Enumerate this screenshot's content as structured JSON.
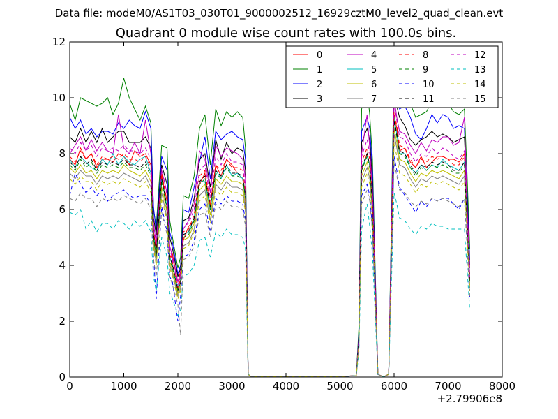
{
  "figure": {
    "suptitle": "Data file: modeM0/AS1T03_030T01_9000002512_16929cztM0_level2_quad_clean.evt",
    "x_offset_text": "+2.79906e8"
  },
  "chart_data": {
    "type": "line",
    "title": "Quadrant 0 module wise count rates with 100.0s bins.",
    "xlabel": "",
    "ylabel": "",
    "xlim": [
      0,
      8000
    ],
    "ylim": [
      0,
      12
    ],
    "x_ticks": [
      0,
      1000,
      2000,
      3000,
      4000,
      5000,
      6000,
      7000,
      8000
    ],
    "y_ticks": [
      0,
      2,
      4,
      6,
      8,
      10,
      12
    ],
    "x_offset": "+2.79906e8",
    "grid": false,
    "legend_position": "top-right",
    "legend_columns": 4,
    "x": [
      0,
      100,
      200,
      300,
      400,
      500,
      600,
      700,
      800,
      900,
      1000,
      1100,
      1200,
      1300,
      1400,
      1500,
      1550,
      1600,
      1700,
      1800,
      1850,
      1900,
      2000,
      2050,
      2100,
      2200,
      2300,
      2400,
      2500,
      2600,
      2700,
      2800,
      2900,
      3000,
      3100,
      3200,
      3250,
      3300,
      3350,
      4000,
      5000,
      5300,
      5350,
      5400,
      5500,
      5550,
      5600,
      5700,
      5800,
      5850,
      5900,
      6000,
      6050,
      6100,
      6200,
      6300,
      6400,
      6500,
      6600,
      6700,
      6800,
      6900,
      7000,
      7100,
      7200,
      7300,
      7350,
      7400
    ],
    "series": [
      {
        "name": "0",
        "color": "#ff0000",
        "dash": "solid",
        "values": [
          7.8,
          7.6,
          8.2,
          7.8,
          8.0,
          7.5,
          7.8,
          7.8,
          7.7,
          8.0,
          7.9,
          7.6,
          8.1,
          7.9,
          8.0,
          7.6,
          5.2,
          4.6,
          7.2,
          6.3,
          4.2,
          4.4,
          3.4,
          3.8,
          4.9,
          5.4,
          5.6,
          6.9,
          7.3,
          6.1,
          7.6,
          7.2,
          7.8,
          7.6,
          7.3,
          7.1,
          6.5,
          0.1,
          0.02,
          0.02,
          0.02,
          0.05,
          1.4,
          7.4,
          8.0,
          7.6,
          6.1,
          0.1,
          0.01,
          0.05,
          0.1,
          9.4,
          8.9,
          8.1,
          8.2,
          7.7,
          7.5,
          7.9,
          7.5,
          7.7,
          7.9,
          7.9,
          7.8,
          7.8,
          7.7,
          8.0,
          5.7,
          3.6
        ]
      },
      {
        "name": "1",
        "color": "#008000",
        "dash": "solid",
        "values": [
          9.8,
          9.2,
          10.0,
          9.9,
          9.8,
          9.7,
          9.8,
          10.0,
          9.4,
          9.8,
          10.7,
          10.0,
          9.6,
          9.2,
          9.7,
          9.1,
          6.0,
          5.4,
          8.3,
          8.2,
          5.6,
          5.0,
          3.9,
          4.3,
          6.5,
          6.4,
          7.2,
          8.9,
          9.4,
          7.6,
          9.6,
          9.0,
          9.5,
          9.3,
          9.5,
          9.3,
          8.2,
          0.1,
          0.02,
          0.02,
          0.02,
          0.05,
          1.8,
          9.6,
          10.3,
          9.4,
          7.8,
          0.1,
          0.01,
          0.05,
          0.1,
          11.2,
          10.7,
          10.2,
          10.3,
          9.8,
          9.3,
          9.4,
          9.5,
          9.9,
          9.7,
          9.8,
          9.8,
          9.5,
          9.4,
          9.6,
          7.3,
          4.6
        ]
      },
      {
        "name": "2",
        "color": "#0000ff",
        "dash": "solid",
        "values": [
          9.3,
          8.9,
          9.2,
          8.7,
          8.9,
          8.6,
          8.8,
          8.8,
          8.7,
          9.1,
          8.9,
          9.2,
          9.0,
          8.9,
          9.5,
          8.9,
          6.1,
          5.2,
          7.9,
          7.4,
          5.2,
          4.8,
          3.7,
          4.0,
          6.0,
          5.9,
          6.8,
          7.7,
          8.6,
          7.1,
          8.8,
          8.5,
          8.7,
          8.8,
          8.6,
          8.5,
          7.8,
          0.1,
          0.02,
          0.02,
          0.02,
          0.05,
          1.6,
          8.8,
          9.3,
          8.9,
          7.4,
          0.1,
          0.01,
          0.05,
          0.1,
          10.6,
          10.2,
          9.6,
          9.7,
          9.3,
          8.7,
          8.5,
          8.9,
          9.4,
          9.1,
          9.4,
          9.3,
          8.9,
          9.0,
          8.9,
          6.7,
          4.2
        ]
      },
      {
        "name": "3",
        "color": "#000000",
        "dash": "solid",
        "values": [
          8.6,
          8.4,
          8.9,
          8.4,
          8.8,
          8.4,
          8.9,
          8.4,
          8.6,
          8.8,
          8.8,
          8.4,
          8.4,
          8.4,
          8.6,
          8.2,
          5.7,
          5.1,
          7.6,
          6.9,
          5.0,
          4.6,
          3.6,
          3.9,
          5.6,
          5.7,
          6.4,
          7.8,
          8.0,
          6.8,
          8.5,
          7.8,
          8.4,
          8.0,
          8.2,
          8.1,
          7.4,
          0.1,
          0.02,
          0.02,
          0.02,
          0.05,
          1.5,
          8.4,
          8.9,
          8.5,
          7.0,
          0.1,
          0.01,
          0.05,
          0.1,
          10.1,
          9.7,
          9.3,
          9.0,
          8.5,
          8.3,
          8.5,
          8.6,
          8.8,
          8.6,
          8.7,
          8.6,
          8.4,
          8.5,
          8.6,
          6.4,
          4.0
        ]
      },
      {
        "name": "4",
        "color": "#bf00bf",
        "dash": "solid",
        "values": [
          8.0,
          8.3,
          8.6,
          8.1,
          8.5,
          8.1,
          8.4,
          8.1,
          8.0,
          9.4,
          8.2,
          8.0,
          8.4,
          8.0,
          9.2,
          8.0,
          5.5,
          4.8,
          7.4,
          6.6,
          4.7,
          4.3,
          3.4,
          3.7,
          5.3,
          5.6,
          6.2,
          8.1,
          7.8,
          6.6,
          8.3,
          7.9,
          8.2,
          8.1,
          8.0,
          7.8,
          7.1,
          0.1,
          0.02,
          0.02,
          0.02,
          0.05,
          1.4,
          8.0,
          9.4,
          8.2,
          6.7,
          0.1,
          0.01,
          0.05,
          0.1,
          10.0,
          9.3,
          8.8,
          8.7,
          8.3,
          8.0,
          8.4,
          8.1,
          8.5,
          8.4,
          8.6,
          8.6,
          8.3,
          8.4,
          9.3,
          6.2,
          3.9
        ]
      },
      {
        "name": "5",
        "color": "#00bfbf",
        "dash": "solid",
        "values": [
          7.8,
          7.5,
          7.9,
          7.7,
          7.5,
          7.4,
          7.8,
          7.6,
          8.0,
          7.6,
          7.9,
          7.7,
          7.6,
          7.8,
          7.9,
          7.3,
          5.1,
          4.4,
          7.1,
          6.1,
          4.3,
          4.0,
          3.2,
          3.5,
          5.1,
          5.2,
          5.7,
          7.0,
          7.0,
          6.0,
          7.4,
          7.1,
          7.6,
          7.2,
          7.3,
          7.1,
          6.4,
          0.1,
          0.02,
          0.02,
          0.02,
          0.05,
          1.3,
          7.5,
          7.9,
          7.6,
          6.2,
          0.1,
          0.01,
          0.05,
          0.1,
          9.3,
          8.7,
          8.0,
          8.0,
          7.5,
          7.3,
          7.6,
          7.4,
          7.6,
          7.5,
          7.8,
          7.6,
          7.5,
          7.4,
          7.7,
          5.6,
          3.5
        ]
      },
      {
        "name": "6",
        "color": "#bfbf00",
        "dash": "solid",
        "values": [
          7.5,
          7.3,
          7.6,
          7.3,
          7.4,
          7.1,
          7.4,
          7.3,
          7.4,
          7.3,
          7.6,
          7.4,
          7.3,
          7.2,
          7.4,
          7.0,
          4.9,
          4.2,
          6.8,
          5.9,
          4.1,
          3.8,
          3.0,
          3.3,
          4.9,
          5.0,
          5.5,
          6.7,
          6.9,
          5.8,
          7.1,
          6.9,
          7.2,
          7.0,
          7.0,
          6.9,
          6.2,
          0.1,
          0.02,
          0.02,
          0.02,
          0.05,
          1.2,
          7.2,
          7.7,
          7.3,
          6.0,
          0.1,
          0.01,
          0.05,
          0.1,
          8.9,
          8.4,
          7.8,
          7.7,
          7.3,
          7.0,
          7.3,
          7.2,
          7.4,
          7.3,
          7.4,
          7.3,
          7.2,
          7.1,
          7.4,
          5.4,
          3.3
        ]
      },
      {
        "name": "7",
        "color": "#808080",
        "dash": "solid",
        "values": [
          7.3,
          7.1,
          7.4,
          7.2,
          7.2,
          6.9,
          7.2,
          7.1,
          7.2,
          7.1,
          7.3,
          7.2,
          7.1,
          7.0,
          7.2,
          6.8,
          4.7,
          4.1,
          6.6,
          5.7,
          4.0,
          3.7,
          2.9,
          3.2,
          4.7,
          4.8,
          5.3,
          6.5,
          6.7,
          5.6,
          6.9,
          6.7,
          7.0,
          6.8,
          6.8,
          6.7,
          6.0,
          0.1,
          0.02,
          0.02,
          0.02,
          0.05,
          1.2,
          7.0,
          7.5,
          7.1,
          5.8,
          0.1,
          0.01,
          0.05,
          0.1,
          8.7,
          8.2,
          7.6,
          7.5,
          7.1,
          6.8,
          7.1,
          7.0,
          7.2,
          7.1,
          7.2,
          7.1,
          7.0,
          6.9,
          7.2,
          5.2,
          3.2
        ]
      },
      {
        "name": "8",
        "color": "#ff0000",
        "dash": "dashed",
        "values": [
          7.9,
          7.7,
          8.1,
          7.8,
          8.0,
          7.6,
          7.9,
          7.8,
          7.9,
          7.8,
          8.0,
          7.8,
          7.8,
          7.7,
          7.9,
          7.5,
          5.2,
          4.5,
          7.3,
          6.3,
          4.4,
          4.1,
          3.2,
          3.5,
          5.2,
          5.3,
          5.8,
          7.2,
          7.4,
          6.2,
          7.6,
          7.4,
          7.8,
          7.5,
          7.5,
          7.4,
          6.6,
          0.1,
          0.02,
          0.02,
          0.02,
          0.05,
          1.3,
          7.7,
          8.2,
          7.8,
          6.4,
          0.1,
          0.01,
          0.05,
          0.1,
          9.5,
          9.0,
          8.3,
          8.2,
          7.8,
          7.5,
          7.8,
          7.7,
          7.9,
          7.8,
          7.9,
          7.8,
          7.6,
          7.6,
          7.9,
          5.7,
          3.5
        ]
      },
      {
        "name": "9",
        "color": "#008000",
        "dash": "dashed",
        "values": [
          7.6,
          7.4,
          7.8,
          7.5,
          7.7,
          7.3,
          7.6,
          7.5,
          7.6,
          7.5,
          7.7,
          7.5,
          7.5,
          7.4,
          7.6,
          7.2,
          5.0,
          4.3,
          7.0,
          6.0,
          4.2,
          3.9,
          3.1,
          3.4,
          5.0,
          5.1,
          5.6,
          6.9,
          7.1,
          6.0,
          7.3,
          7.1,
          7.5,
          7.2,
          7.2,
          7.1,
          6.4,
          0.1,
          0.02,
          0.02,
          0.02,
          0.05,
          1.3,
          7.4,
          7.9,
          7.5,
          6.1,
          0.1,
          0.01,
          0.05,
          0.1,
          9.1,
          8.6,
          8.0,
          7.9,
          7.5,
          7.2,
          7.5,
          7.4,
          7.6,
          7.5,
          7.6,
          7.5,
          7.3,
          7.3,
          7.6,
          5.5,
          3.4
        ]
      },
      {
        "name": "10",
        "color": "#0000ff",
        "dash": "dashed",
        "values": [
          6.5,
          7.3,
          6.9,
          6.6,
          6.8,
          6.5,
          6.7,
          6.3,
          6.5,
          6.6,
          6.7,
          6.5,
          6.4,
          6.5,
          6.5,
          6.2,
          4.3,
          2.8,
          6.1,
          5.2,
          3.6,
          3.4,
          2.0,
          2.9,
          4.3,
          4.4,
          4.9,
          6.0,
          6.2,
          5.2,
          6.4,
          6.2,
          6.5,
          6.3,
          6.3,
          6.2,
          5.6,
          0.1,
          0.02,
          0.02,
          0.02,
          0.05,
          1.1,
          6.5,
          6.9,
          6.5,
          5.3,
          0.1,
          0.01,
          0.05,
          0.1,
          7.9,
          7.4,
          6.8,
          6.5,
          6.2,
          5.9,
          6.3,
          6.1,
          6.4,
          6.3,
          6.4,
          6.4,
          6.2,
          6.0,
          6.4,
          4.7,
          2.8
        ]
      },
      {
        "name": "11",
        "color": "#000000",
        "dash": "dashed",
        "values": [
          7.7,
          7.5,
          7.9,
          7.6,
          7.8,
          7.4,
          7.7,
          7.6,
          7.7,
          7.6,
          7.8,
          7.6,
          7.6,
          7.5,
          7.7,
          7.3,
          5.1,
          4.4,
          7.1,
          6.1,
          4.3,
          4.0,
          3.1,
          3.4,
          5.1,
          5.2,
          5.7,
          7.0,
          7.2,
          6.1,
          7.4,
          7.2,
          7.6,
          7.3,
          7.3,
          7.2,
          6.5,
          0.1,
          0.02,
          0.02,
          0.02,
          0.05,
          1.3,
          7.5,
          8.0,
          7.6,
          6.2,
          0.1,
          0.01,
          0.05,
          0.1,
          9.2,
          8.7,
          8.1,
          8.0,
          7.6,
          7.3,
          7.6,
          7.5,
          7.7,
          7.6,
          7.7,
          7.6,
          7.4,
          7.4,
          7.7,
          5.6,
          3.4
        ]
      },
      {
        "name": "12",
        "color": "#bf00bf",
        "dash": "dashed",
        "values": [
          8.2,
          8.0,
          8.4,
          8.1,
          8.3,
          7.9,
          8.2,
          8.1,
          8.2,
          8.1,
          8.3,
          8.1,
          8.1,
          8.0,
          8.2,
          7.8,
          5.4,
          4.7,
          7.5,
          6.5,
          4.6,
          4.2,
          3.3,
          3.6,
          5.4,
          5.5,
          6.0,
          7.4,
          7.6,
          6.4,
          7.9,
          7.6,
          8.0,
          7.7,
          7.7,
          7.6,
          6.8,
          0.1,
          0.02,
          0.02,
          0.02,
          0.05,
          1.4,
          7.9,
          8.5,
          8.0,
          6.6,
          0.1,
          0.01,
          0.05,
          0.1,
          9.8,
          9.2,
          8.6,
          8.5,
          8.0,
          7.7,
          8.0,
          7.9,
          8.2,
          8.0,
          8.2,
          8.1,
          7.9,
          7.8,
          8.1,
          5.9,
          3.6
        ]
      },
      {
        "name": "13",
        "color": "#00bfbf",
        "dash": "dashed",
        "values": [
          5.9,
          5.8,
          6.0,
          5.3,
          5.6,
          5.2,
          5.5,
          5.5,
          5.3,
          5.6,
          5.5,
          5.3,
          5.6,
          5.4,
          5.6,
          5.2,
          3.6,
          3.1,
          5.0,
          4.3,
          3.0,
          2.8,
          2.2,
          2.4,
          3.6,
          3.7,
          4.0,
          4.9,
          5.0,
          4.3,
          5.2,
          5.0,
          5.3,
          5.1,
          5.1,
          5.0,
          4.6,
          0.1,
          0.02,
          0.02,
          0.02,
          0.05,
          0.9,
          5.3,
          6.2,
          5.4,
          4.4,
          0.1,
          0.01,
          0.05,
          0.1,
          6.6,
          6.2,
          5.7,
          5.6,
          5.3,
          5.1,
          5.4,
          5.3,
          5.5,
          5.4,
          5.4,
          5.3,
          5.3,
          5.3,
          5.3,
          3.9,
          2.4
        ]
      },
      {
        "name": "14",
        "color": "#bfbf00",
        "dash": "dashed",
        "values": [
          7.1,
          6.9,
          7.2,
          7.0,
          7.0,
          6.7,
          7.0,
          6.9,
          7.0,
          6.9,
          7.1,
          7.0,
          6.9,
          6.8,
          7.0,
          6.6,
          4.6,
          4.0,
          6.4,
          5.6,
          3.9,
          3.6,
          2.8,
          3.1,
          4.6,
          4.7,
          5.2,
          6.3,
          6.5,
          5.5,
          6.7,
          6.5,
          6.8,
          6.6,
          6.6,
          6.5,
          5.9,
          0.1,
          0.02,
          0.02,
          0.02,
          0.05,
          1.2,
          6.8,
          7.3,
          6.9,
          5.6,
          0.1,
          0.01,
          0.05,
          0.1,
          8.4,
          7.9,
          7.3,
          7.2,
          6.9,
          6.6,
          6.9,
          6.8,
          7.0,
          6.9,
          7.0,
          6.9,
          6.8,
          6.7,
          7.0,
          5.1,
          3.1
        ]
      },
      {
        "name": "15",
        "color": "#808080",
        "dash": "dashed",
        "values": [
          6.4,
          6.3,
          6.6,
          6.4,
          6.4,
          6.1,
          6.4,
          6.3,
          6.4,
          6.3,
          6.5,
          6.4,
          6.3,
          6.2,
          6.4,
          6.0,
          4.2,
          3.6,
          5.9,
          5.1,
          3.6,
          3.3,
          2.6,
          1.5,
          4.2,
          4.3,
          4.7,
          5.8,
          5.9,
          5.0,
          6.2,
          6.0,
          6.3,
          6.1,
          6.1,
          6.0,
          5.4,
          0.1,
          0.02,
          0.02,
          0.02,
          0.05,
          1.1,
          6.2,
          6.7,
          6.3,
          5.2,
          0.1,
          0.01,
          0.05,
          0.1,
          7.7,
          7.2,
          6.7,
          6.6,
          6.3,
          6.1,
          6.3,
          6.2,
          6.4,
          6.3,
          6.4,
          6.3,
          6.2,
          6.1,
          6.4,
          4.7,
          2.9
        ]
      }
    ]
  }
}
